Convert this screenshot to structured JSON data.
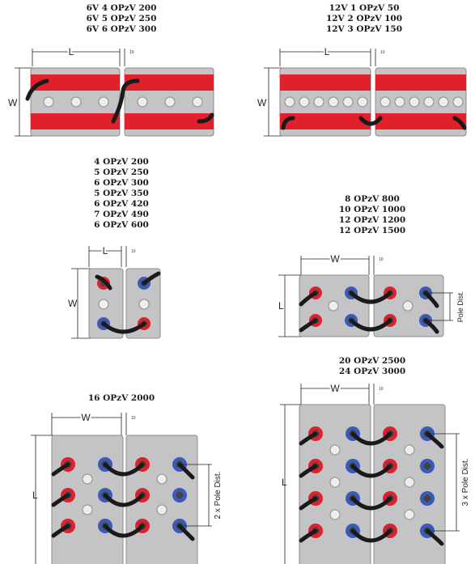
{
  "panels": [
    {
      "id": "p1",
      "models": [
        "6V 4 OPzV 200",
        "6V 5 OPzV 250",
        "6V 6 OPzV 300"
      ],
      "dims": {
        "length": "L",
        "width": "W",
        "gap": "10"
      }
    },
    {
      "id": "p2",
      "models": [
        "12V 1 OPzV 50",
        "12V 2 OPzV 100",
        "12V 3 OPzV 150"
      ],
      "dims": {
        "length": "L",
        "width": "W",
        "gap": "10"
      }
    },
    {
      "id": "p3",
      "models": [
        "4 OPzV 200",
        "5 OPzV 250",
        "6 OPzV 300",
        "5 OPzV 350",
        "6 OPzV 420",
        "7 OPzV 490",
        "6 OPzV 600"
      ],
      "dims": {
        "length": "L",
        "width": "W",
        "gap": "10"
      }
    },
    {
      "id": "p4",
      "models": [
        "8 OPzV 800",
        "10 OPzV 1000",
        "12 OPzV 1200",
        "12 OPzV 1500"
      ],
      "dims": {
        "width": "W",
        "length": "L",
        "gap": "10",
        "pole": "Pole Dist."
      }
    },
    {
      "id": "p5",
      "models": [
        "16 OPzV 2000"
      ],
      "dims": {
        "width": "W",
        "length": "L",
        "gap": "10",
        "pole": "2 x Pole Dist."
      }
    },
    {
      "id": "p6",
      "models": [
        "20 OPzV 2500",
        "24 OPzV 3000"
      ],
      "dims": {
        "width": "W",
        "length": "L",
        "gap": "10",
        "pole": "3 x Pole Dist."
      }
    }
  ],
  "colors": {
    "case": "#c4c4c6",
    "case_edge": "#8d8d90",
    "positive": "#e0202a",
    "negative": "#3a5bb8",
    "cable": "#1a1a1a",
    "plug": "#eeeeee"
  }
}
